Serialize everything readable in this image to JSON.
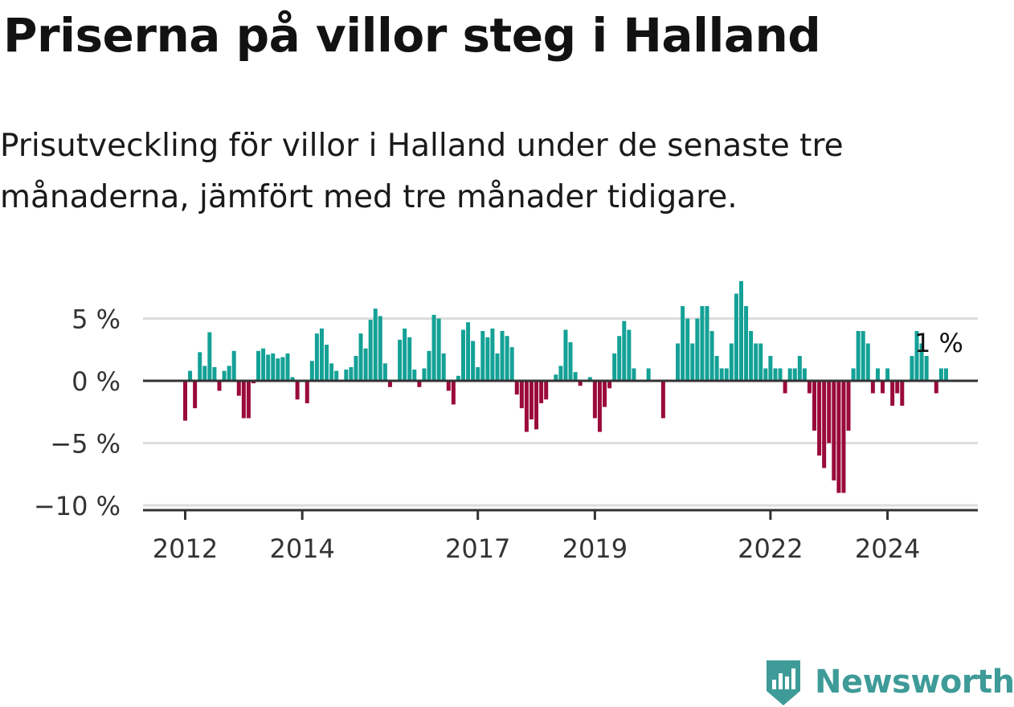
{
  "header": {
    "title": "Priserna på villor steg i Halland",
    "subtitle": "Prisutveckling för villor i Halland under de senaste tre månaderna, jämfört med tre månader tidigare."
  },
  "brand": {
    "name": "Newsworthy",
    "icon": "newsworthy-logo-icon"
  },
  "colors": {
    "positive": "#14a196",
    "negative": "#9a0a3a",
    "grid": "#dddddd",
    "axis": "#333333"
  },
  "chart_data": {
    "type": "bar",
    "title": "Priserna på villor steg i Halland",
    "subtitle": "Prisutveckling för villor i Halland under de senaste tre månaderna, jämfört med tre månader tidigare.",
    "x_start": "2011-06",
    "frequency": "monthly",
    "ylim": [
      -10,
      8
    ],
    "yticks": [
      -10,
      -5,
      0,
      5
    ],
    "ytick_labels": [
      "−10 %",
      "−5 %",
      "0 %",
      "5 %"
    ],
    "xtick_labels": [
      "2012",
      "2014",
      "2017",
      "2019",
      "2022",
      "2024"
    ],
    "last_value_label": "1 %",
    "grid": true,
    "values": [
      0,
      0,
      0,
      0,
      0,
      0,
      0,
      -3.2,
      0.8,
      -2.2,
      2.3,
      1.2,
      3.9,
      1.1,
      -0.8,
      0.8,
      1.2,
      2.4,
      -1.2,
      -3.0,
      -3.0,
      -0.2,
      2.4,
      2.6,
      2.1,
      2.2,
      1.8,
      1.9,
      2.2,
      0.3,
      -1.5,
      0,
      -1.8,
      1.6,
      3.8,
      4.2,
      2.9,
      1.4,
      0.8,
      0,
      0.9,
      1.1,
      2.0,
      3.8,
      2.6,
      4.9,
      5.8,
      5.2,
      1.4,
      -0.5,
      0,
      3.3,
      4.2,
      3.5,
      0.9,
      -0.5,
      1.0,
      2.4,
      5.3,
      5.0,
      2.2,
      -0.8,
      -1.9,
      0.4,
      4.1,
      4.7,
      3.2,
      1.1,
      4.0,
      3.5,
      4.2,
      2.2,
      4.0,
      3.6,
      2.7,
      -1.1,
      -2.2,
      -4.1,
      -3.1,
      -3.9,
      -1.8,
      -1.5,
      0,
      0.5,
      1.2,
      4.1,
      3.1,
      0.7,
      -0.4,
      0,
      0.3,
      -3.0,
      -4.1,
      -2.1,
      -0.6,
      2.2,
      3.6,
      4.8,
      4.1,
      1.0,
      0,
      0,
      1.0,
      0,
      0,
      -3.0,
      0,
      0,
      3.0,
      6.0,
      5.0,
      3.0,
      5.0,
      6.0,
      6.0,
      4.0,
      2.0,
      1.0,
      1.0,
      3.0,
      7.0,
      8.0,
      6.0,
      4.0,
      3.0,
      3.0,
      1.0,
      2.0,
      1.0,
      1.0,
      -1.0,
      1.0,
      1.0,
      2.0,
      1.0,
      -1.0,
      -4.0,
      -6.0,
      -7.0,
      -5.0,
      -8.0,
      -9.0,
      -9.0,
      -4.0,
      1.0,
      4.0,
      4.0,
      3.0,
      -1.0,
      1.0,
      -1.0,
      1.0,
      -2.0,
      -1.0,
      -2.0,
      0,
      2.0,
      4.0,
      3.0,
      2.0,
      0,
      -1.0,
      1.0,
      1.0
    ]
  }
}
